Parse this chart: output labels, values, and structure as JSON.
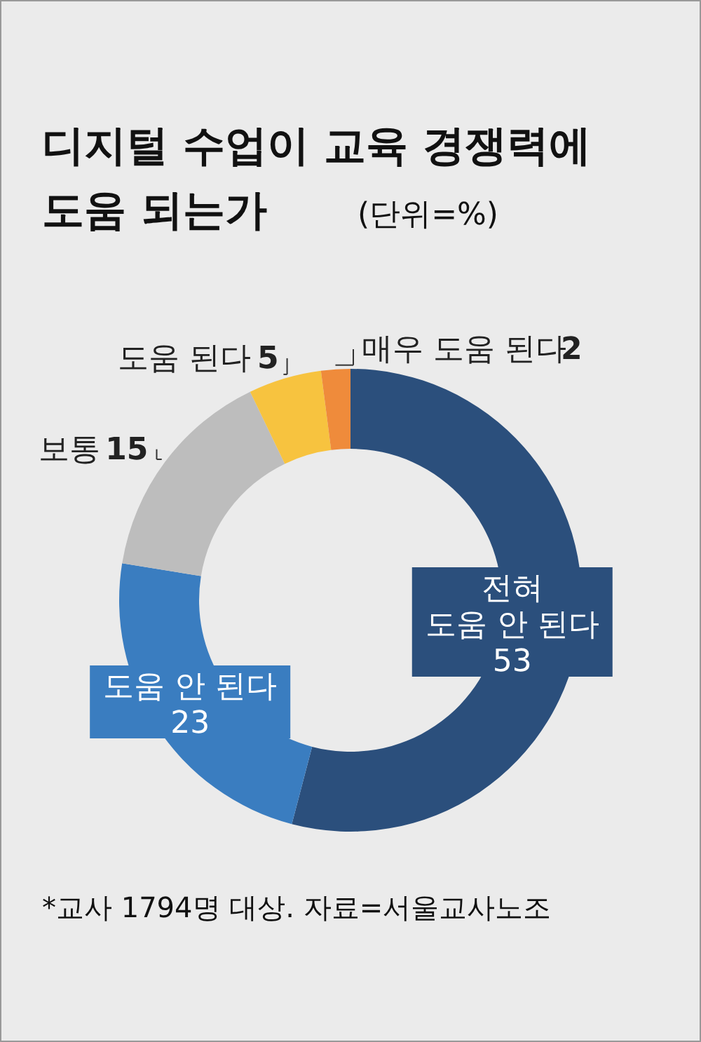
{
  "chart_data": {
    "type": "donut",
    "title": [
      "디지털 수업이 교육 경쟁력에",
      "도움 되는가"
    ],
    "subtitle": "(단위=%)",
    "categories": [
      "전혀\n도움 안 된다",
      "도움 안 된다",
      "보통",
      "도움 된다",
      "매우 도움 된다"
    ],
    "values": [
      53,
      23,
      15,
      5,
      2
    ],
    "colors": [
      "#2b4f7c",
      "#3a7dc0",
      "#bdbdbd",
      "#f7c33f",
      "#ef8b3b"
    ],
    "data_labels": true,
    "annotations": [
      "*교사 1794명 대상. 자료=서울교사노조"
    ]
  }
}
